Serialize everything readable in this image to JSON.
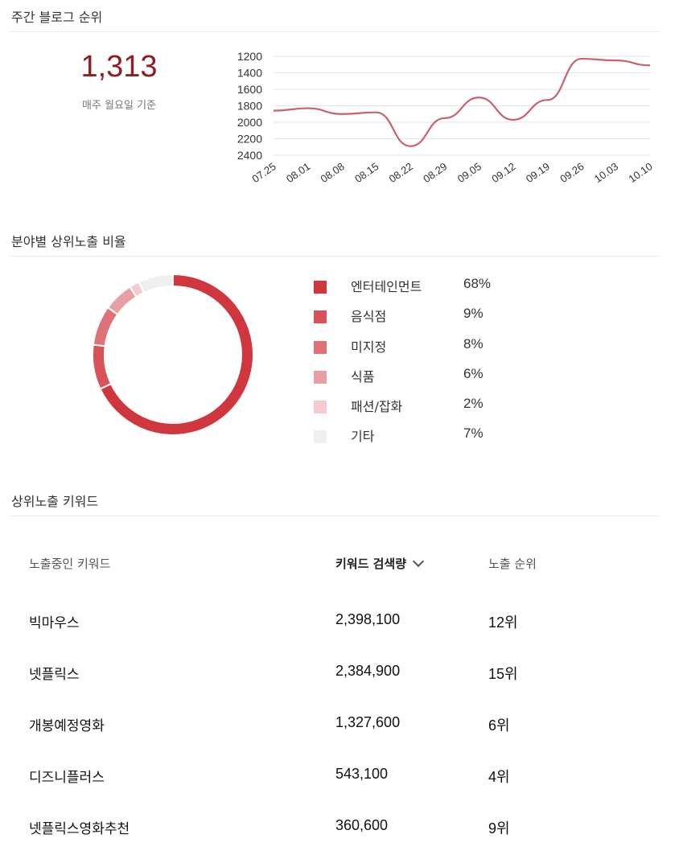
{
  "weekly_rank": {
    "title": "주간 블로그 순위",
    "value": "1,313",
    "note": "매주 월요일 기준"
  },
  "chart_data": {
    "type": "line",
    "x": [
      "07.25",
      "08.01",
      "08.08",
      "08.15",
      "08.22",
      "08.29",
      "09.05",
      "09.12",
      "09.19",
      "09.26",
      "10.03",
      "10.10"
    ],
    "y_ticks": [
      1200,
      1400,
      1600,
      1800,
      2000,
      2200,
      2400
    ],
    "ylim": [
      2400,
      1200
    ],
    "y_reversed": true,
    "series": [
      {
        "values": [
          1860,
          1830,
          1900,
          1880,
          2290,
          1950,
          1700,
          1970,
          1730,
          1230,
          1250,
          1310
        ]
      }
    ],
    "line_color": "#c7636b",
    "grid": true
  },
  "category_share": {
    "title": "분야별 상위노출 비율",
    "items": [
      {
        "label": "엔터테인먼트",
        "pct": "68%",
        "value": 68,
        "color": "#d0363d"
      },
      {
        "label": "음식점",
        "pct": "9%",
        "value": 9,
        "color": "#d8525a"
      },
      {
        "label": "미지정",
        "pct": "8%",
        "value": 8,
        "color": "#df7279"
      },
      {
        "label": "식품",
        "pct": "6%",
        "value": 6,
        "color": "#e79fa4"
      },
      {
        "label": "패션/잡화",
        "pct": "2%",
        "value": 2,
        "color": "#f3cbce"
      },
      {
        "label": "기타",
        "pct": "7%",
        "value": 7,
        "color": "#efefef"
      }
    ]
  },
  "keywords": {
    "title": "상위노출 키워드",
    "headers": {
      "keyword": "노출중인 키워드",
      "volume": "키워드 검색량",
      "rank": "노출 순위"
    },
    "rows": [
      {
        "keyword": "빅마우스",
        "volume": "2,398,100",
        "rank": "12위"
      },
      {
        "keyword": "넷플릭스",
        "volume": "2,384,900",
        "rank": "15위"
      },
      {
        "keyword": "개봉예정영화",
        "volume": "1,327,600",
        "rank": "6위"
      },
      {
        "keyword": "디즈니플러스",
        "volume": "543,100",
        "rank": "4위"
      },
      {
        "keyword": "넷플릭스영화추천",
        "volume": "360,600",
        "rank": "9위"
      }
    ]
  }
}
